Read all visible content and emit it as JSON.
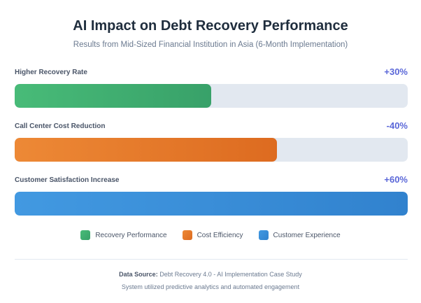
{
  "chart_data": {
    "type": "bar",
    "orientation": "horizontal",
    "title": "AI Impact on Debt Recovery Performance",
    "subtitle": "Results from Mid-Sized Financial Institution in Asia (6-Month Implementation)",
    "categories": [
      "Higher Recovery Rate",
      "Call Center Cost Reduction",
      "Customer Satisfaction Increase"
    ],
    "data_labels": [
      "+30%",
      "-40%",
      "+60%"
    ],
    "fill_percent": [
      50,
      66.7,
      100
    ],
    "colors": [
      [
        "#48bb78",
        "#38a169"
      ],
      [
        "#ed8936",
        "#dd6b20"
      ],
      [
        "#4299e1",
        "#3182ce"
      ]
    ],
    "track_color": "#e2e8f0",
    "legend": [
      {
        "label": "Recovery Performance",
        "color": "#38a169"
      },
      {
        "label": "Cost Efficiency",
        "color": "#dd6b20"
      },
      {
        "label": "Customer Experience",
        "color": "#3182ce"
      }
    ],
    "legend_placement": "bottom",
    "grid": false
  },
  "footer": {
    "source_label": "Data Source:",
    "source_text": " Debt Recovery 4.0 - AI Implementation Case Study",
    "note": "System utilized predictive analytics and automated engagement"
  }
}
